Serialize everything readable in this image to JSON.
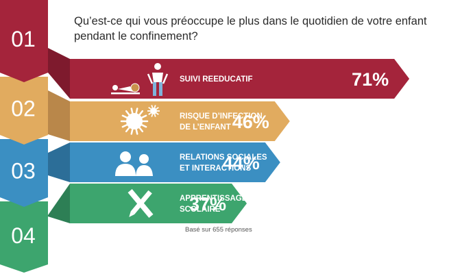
{
  "question": "Qu’est-ce qui vous préoccupe le plus dans le quotidien de votre enfant pendant le confinement?",
  "footnote": "Basé sur 655 réponses",
  "colors": {
    "red": "#a4243b",
    "red_dark": "#7e1a2d",
    "orange": "#e1ab5f",
    "orange_dark": "#b9874a",
    "blue": "#3b8fc2",
    "blue_dark": "#2c6e98",
    "green": "#3da56e",
    "green_dark": "#2d7f55",
    "number_text": "#ffffff"
  },
  "chart_data": {
    "type": "bar",
    "title": "Qu’est-ce qui vous préoccupe le plus dans le quotidien de votre enfant pendant le confinement?",
    "categories": [
      "SUIVI REEDUCATIF",
      "RISQUE D’INFECTION DE L’ENFANT",
      "RELATIONS SOCIALES ET INTERACTIONS",
      "APPRENTISSAGE SCOLAIRE"
    ],
    "values": [
      71,
      46,
      44,
      37
    ],
    "unit": "%",
    "items": [
      {
        "number": "01",
        "label_lines": [
          "SUIVI REEDUCATIF"
        ],
        "value": 71,
        "value_label": "71%",
        "icon": "therapy-icon"
      },
      {
        "number": "02",
        "label_lines": [
          "RISQUE D’INFECTION",
          "DE L’ENFANT"
        ],
        "value": 46,
        "value_label": "46%",
        "icon": "virus-icon"
      },
      {
        "number": "03",
        "label_lines": [
          "RELATIONS SOCIALES",
          "ET INTERACTIONS"
        ],
        "value": 44,
        "value_label": "44%",
        "icon": "people-icon"
      },
      {
        "number": "04",
        "label_lines": [
          "APPRENTISSAGE",
          "SCOLAIRE"
        ],
        "value": 37,
        "value_label": "37%",
        "icon": "pencil-ruler-icon"
      }
    ]
  }
}
